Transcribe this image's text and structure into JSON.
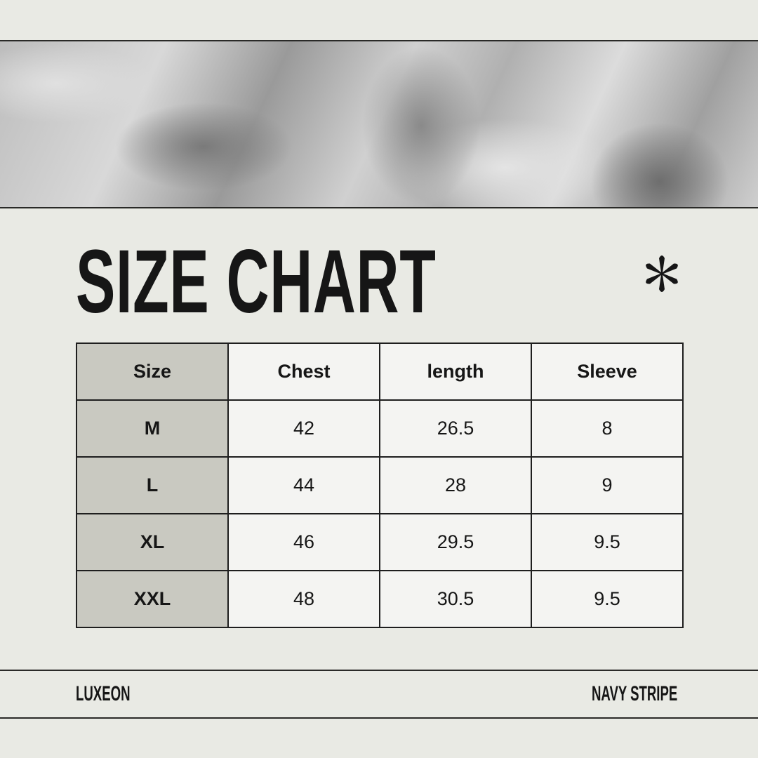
{
  "title": "SIZE CHART",
  "icons": {
    "decoration": "asterisk-icon"
  },
  "table": {
    "headers": [
      "Size",
      "Chest",
      "length",
      "Sleeve"
    ],
    "rows": [
      [
        "M",
        "42",
        "26.5",
        "8"
      ],
      [
        "L",
        "44",
        "28",
        "9"
      ],
      [
        "XL",
        "46",
        "29.5",
        "9.5"
      ],
      [
        "XXL",
        "48",
        "30.5",
        "9.5"
      ]
    ]
  },
  "footer": {
    "brand": "LUXEON",
    "variant": "NAVY STRIPE"
  },
  "colors": {
    "background": "#e9eae4",
    "size_column": "#c9c9c1",
    "cell": "#f4f4f2",
    "text": "#161616"
  }
}
